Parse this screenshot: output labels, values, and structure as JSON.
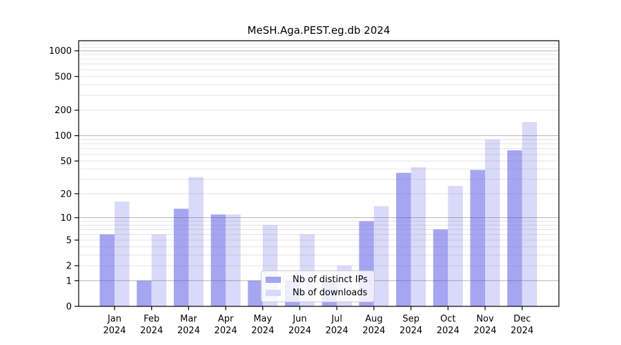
{
  "title": "MeSH.Aga.PEST.eg.db 2024",
  "legend": {
    "items": [
      {
        "label": "Nb of distinct IPs",
        "color": "#a5a5f2"
      },
      {
        "label": "Nb of downloads",
        "color": "#d9d9f9"
      }
    ],
    "position": "lower center"
  },
  "chart_data": {
    "type": "bar",
    "title": "MeSH.Aga.PEST.eg.db 2024",
    "categories": [
      "Jan",
      "Feb",
      "Mar",
      "Apr",
      "May",
      "Jun",
      "Jul",
      "Aug",
      "Sep",
      "Oct",
      "Nov",
      "Dec"
    ],
    "x_sublabel": "2024",
    "series": [
      {
        "name": "Nb of distinct IPs",
        "color": "#a5a5f2",
        "values": [
          6,
          1,
          13,
          11,
          1,
          1,
          1,
          9,
          36,
          7,
          39,
          67
        ]
      },
      {
        "name": "Nb of downloads",
        "color": "#d9d9f9",
        "values": [
          16,
          6,
          32,
          11,
          8,
          6,
          2,
          14,
          42,
          25,
          90,
          145
        ]
      }
    ],
    "yscale": "log1p",
    "y_ticks": [
      0,
      1,
      2,
      5,
      10,
      20,
      50,
      100,
      200,
      500,
      1000
    ],
    "ylim": [
      0,
      1300
    ],
    "grid": true,
    "grid_major_values": [
      1,
      10,
      100,
      1000
    ],
    "legend_position": "lower center",
    "colors": {
      "spine": "#000000",
      "major_grid": "rgba(80,80,80,0.42)",
      "minor_grid": "rgba(130,130,130,0.22)",
      "text": "#000000",
      "background": "#ffffff"
    }
  }
}
